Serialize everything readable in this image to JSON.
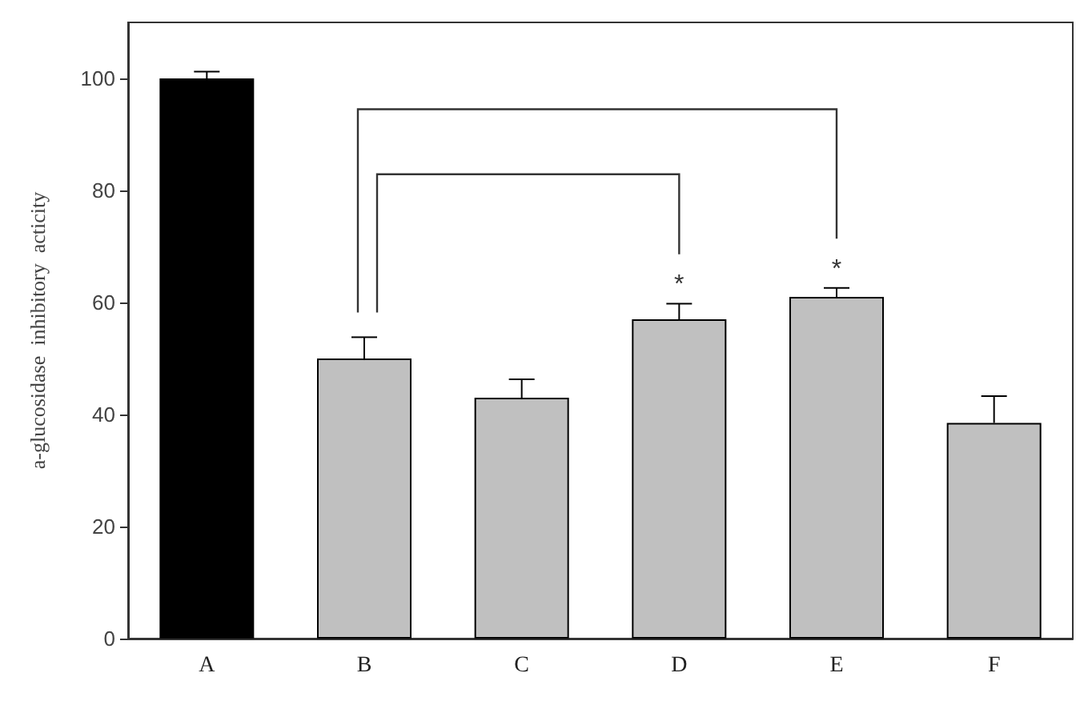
{
  "chart_data": {
    "type": "bar",
    "ylabel": "a-glucosidase  inhibitory  acticity",
    "categories": [
      "A",
      "B",
      "C",
      "D",
      "E",
      "F"
    ],
    "values": [
      100,
      50,
      43,
      57,
      61,
      38.5
    ],
    "colors": [
      "#000000",
      "#c0c0c0",
      "#c0c0c0",
      "#c0c0c0",
      "#c0c0c0",
      "#c0c0c0"
    ],
    "errors": [
      [
        100,
        101.2
      ],
      [
        50,
        53.8
      ],
      [
        43,
        46.3
      ],
      [
        57,
        59.8
      ],
      [
        61,
        62.6
      ],
      [
        38.5,
        43.3
      ]
    ],
    "ylim": [
      0,
      110
    ],
    "yticks": [
      0,
      20,
      40,
      60,
      80,
      100
    ],
    "grid": false,
    "annotations": [
      "*",
      "*"
    ]
  }
}
